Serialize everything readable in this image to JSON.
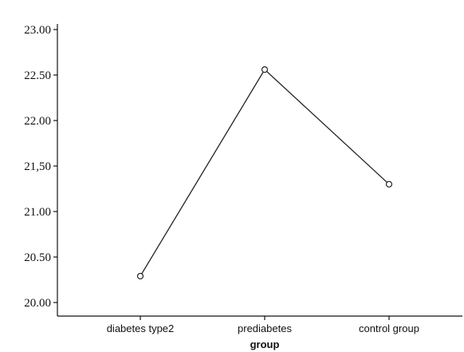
{
  "chart_data": {
    "type": "line",
    "title": "",
    "xlabel": "group",
    "ylabel": "",
    "categories": [
      "diabetes type2",
      "prediabetes",
      "control group"
    ],
    "series": [
      {
        "values": [
          20.29,
          22.56,
          21.3
        ]
      }
    ],
    "ylim": [
      20.0,
      23.0
    ],
    "y_ticks": [
      "20.00",
      "20.50",
      "21.00",
      "21,50",
      "22.00",
      "22.50",
      "23.00"
    ],
    "y_tick_values": [
      20.0,
      20.5,
      21.0,
      21.5,
      22.0,
      22.5,
      23.0
    ],
    "grid": false,
    "legend": "none",
    "marker": "open-circle",
    "colors": {
      "line": "#222222",
      "axis": "#111111"
    }
  }
}
